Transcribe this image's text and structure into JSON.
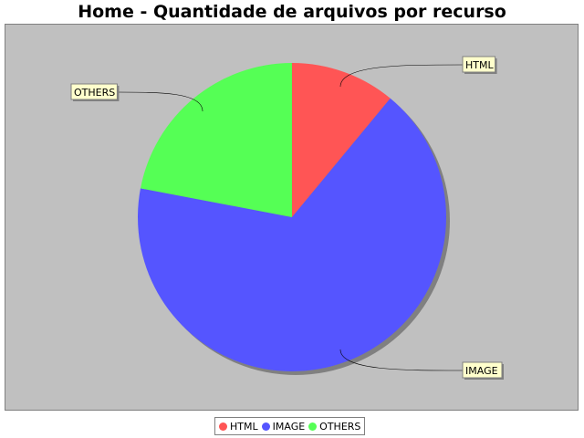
{
  "chart_data": {
    "type": "pie",
    "title": "Home - Quantidade de arquivos por recurso",
    "categories": [
      "HTML",
      "IMAGE",
      "OTHERS"
    ],
    "values": [
      11,
      67,
      22
    ],
    "colors": [
      "#ff5555",
      "#5555ff",
      "#55ff55"
    ],
    "legend_position": "bottom",
    "background": "#c0c0c0"
  }
}
